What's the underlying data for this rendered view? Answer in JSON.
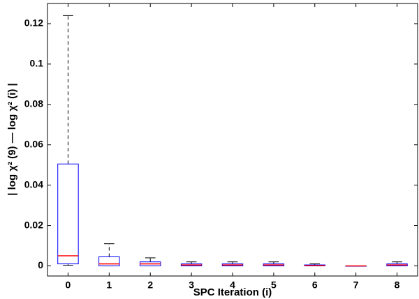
{
  "chart_data": {
    "type": "box",
    "xlabel": "SPC Iteration (i)",
    "ylabel": "| log χ² (9) — log χ² (i) |",
    "categories": [
      "0",
      "1",
      "2",
      "3",
      "4",
      "5",
      "6",
      "7",
      "8"
    ],
    "boxes": [
      {
        "min": 0.0003,
        "q1": 0.001,
        "median": 0.005,
        "q3": 0.0505,
        "max": 0.124
      },
      {
        "min": 0,
        "q1": 0,
        "median": 0.001,
        "q3": 0.0045,
        "max": 0.011
      },
      {
        "min": 0,
        "q1": 0,
        "median": 0.001,
        "q3": 0.002,
        "max": 0.004
      },
      {
        "min": 0,
        "q1": 0,
        "median": 0.0005,
        "q3": 0.001,
        "max": 0.002
      },
      {
        "min": 0,
        "q1": 0,
        "median": 0.0005,
        "q3": 0.001,
        "max": 0.002
      },
      {
        "min": 0,
        "q1": 0,
        "median": 0.0005,
        "q3": 0.001,
        "max": 0.002
      },
      {
        "min": 0,
        "q1": 0,
        "median": 0.0002,
        "q3": 0.0005,
        "max": 0.001
      },
      {
        "min": 0,
        "q1": 0,
        "median": 0,
        "q3": 0,
        "max": 0
      },
      {
        "min": 0,
        "q1": 0,
        "median": 0.0005,
        "q3": 0.001,
        "max": 0.002
      }
    ],
    "box_color": "#0000ff",
    "median_color": "#ff0000",
    "whisker_color": "#000000",
    "xlim": [
      -0.5,
      8.5
    ],
    "ylim": [
      -0.005,
      0.13
    ],
    "yticks": [
      0,
      0.02,
      0.04,
      0.06,
      0.08,
      0.1,
      0.12
    ]
  }
}
